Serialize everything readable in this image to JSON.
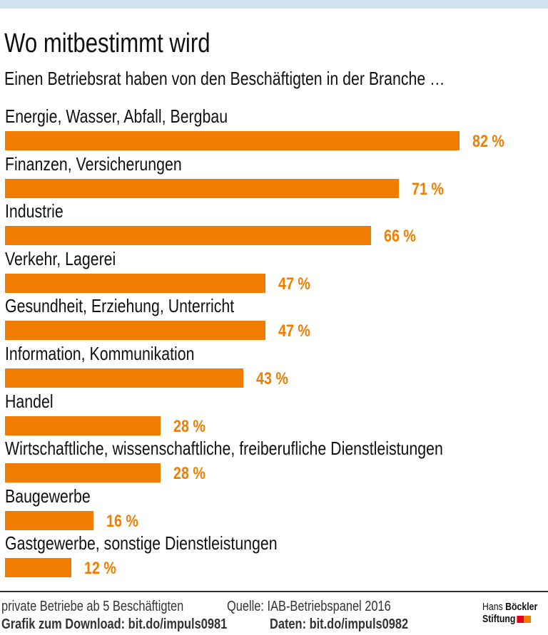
{
  "chart_data": {
    "type": "bar",
    "orientation": "horizontal",
    "title": "Wo mitbestimmt wird",
    "subtitle": "Einen Betriebsrat haben von den Beschäftigten in der Branche …",
    "categories": [
      "Energie, Wasser, Abfall, Bergbau",
      "Finanzen, Versicherungen",
      "Industrie",
      "Verkehr, Lagerei",
      "Gesundheit, Erziehung, Unterricht",
      "Information, Kommunikation",
      "Handel",
      "Wirtschaftliche, wissenschaftliche, freiberufliche Dienstleistungen",
      "Baugewerbe",
      "Gastgewerbe, sonstige Dienstleistungen"
    ],
    "values": [
      82,
      71,
      66,
      47,
      47,
      43,
      28,
      28,
      16,
      12
    ],
    "value_labels": [
      "82 %",
      "71 %",
      "66 %",
      "47 %",
      "47 %",
      "43 %",
      "28 %",
      "28 %",
      "16 %",
      "12 %"
    ],
    "xlim": [
      0,
      100
    ],
    "grid": false,
    "bar_color": "#f07d00"
  },
  "footer": {
    "note": "private Betriebe ab 5 Beschäftigten",
    "source": "Quelle: IAB-Betriebspanel 2016",
    "download": "Grafik zum Download: bit.do/impuls0981",
    "data": "Daten: bit.do/impuls0982"
  },
  "logo": {
    "line1_light": "Hans",
    "line1_bold": "Böckler",
    "line2": "Stiftung",
    "colors": [
      "#e2001a",
      "#f07d00"
    ]
  },
  "colors": {
    "top_band": "#cde3ee"
  }
}
